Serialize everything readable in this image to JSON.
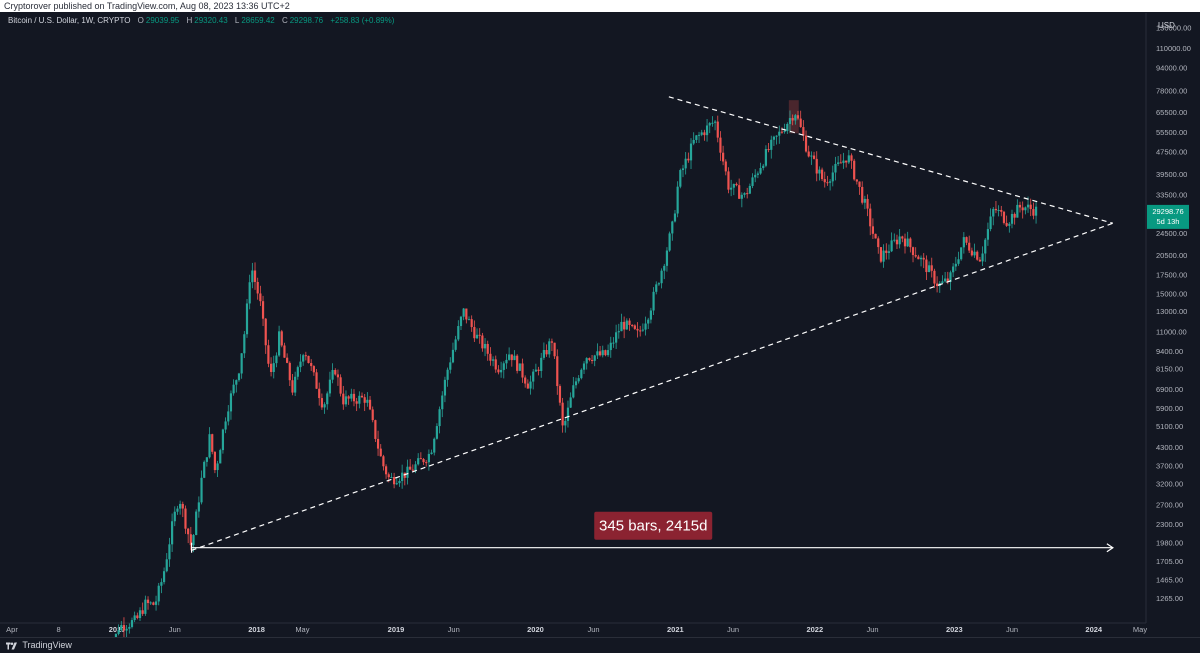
{
  "header": {
    "publisher": "Cryptorover published on TradingView.com, Aug 08, 2023 13:36 UTC+2"
  },
  "legend": {
    "symbol": "Bitcoin / U.S. Dollar, 1W, CRYPTO",
    "open_label": "O",
    "open": "29039.95",
    "high_label": "H",
    "high": "29320.43",
    "low_label": "L",
    "low": "28659.42",
    "close_label": "C",
    "close": "29298.76",
    "change": "+258.83 (+0.89%)"
  },
  "footer": {
    "brand": "TradingView"
  },
  "colors": {
    "background": "#131722",
    "up": "#26a69a",
    "down": "#ef5350",
    "price_badge": "#089981",
    "measure_label_bg": "#8b2331",
    "trendline": "#ffffff"
  },
  "chart_data": {
    "type": "candlestick",
    "title": "Bitcoin / U.S. Dollar, 1W, CRYPTO",
    "currency_label": "USD",
    "y_scale": "log",
    "ylim": [
      1100,
      145000
    ],
    "y_ticks": [
      "130000.00",
      "110000.00",
      "94000.00",
      "78000.00",
      "65500.00",
      "55500.00",
      "47500.00",
      "39500.00",
      "33500.00",
      "28500.00",
      "24500.00",
      "20500.00",
      "17500.00",
      "15000.00",
      "13000.00",
      "11000.00",
      "9400.00",
      "8150.00",
      "6900.00",
      "5900.00",
      "5100.00",
      "4300.00",
      "3700.00",
      "3200.00",
      "2700.00",
      "2300.00",
      "1980.00",
      "1705.00",
      "1465.00",
      "1265.00"
    ],
    "y_tick_values": [
      130000,
      110000,
      94000,
      78000,
      65500,
      55500,
      47500,
      39500,
      33500,
      28500,
      24500,
      20500,
      17500,
      15000,
      13000,
      11000,
      9400,
      8150,
      6900,
      5900,
      5100,
      4300,
      3700,
      3200,
      2700,
      2300,
      1980,
      1705,
      1465,
      1265
    ],
    "x_ticks": [
      {
        "label": "Apr",
        "date": "2016-04-01"
      },
      {
        "label": "8",
        "date": "2016-08-01"
      },
      {
        "label": "2017",
        "date": "2017-01-01"
      },
      {
        "label": "Jun",
        "date": "2017-06-01"
      },
      {
        "label": "2018",
        "date": "2018-01-01"
      },
      {
        "label": "May",
        "date": "2018-05-01"
      },
      {
        "label": "2019",
        "date": "2019-01-01"
      },
      {
        "label": "Jun",
        "date": "2019-06-01"
      },
      {
        "label": "2020",
        "date": "2020-01-01"
      },
      {
        "label": "Jun",
        "date": "2020-06-01"
      },
      {
        "label": "2021",
        "date": "2021-01-01"
      },
      {
        "label": "Jun",
        "date": "2021-06-01"
      },
      {
        "label": "2022",
        "date": "2022-01-01"
      },
      {
        "label": "Jun",
        "date": "2022-06-01"
      },
      {
        "label": "2023",
        "date": "2023-01-01"
      },
      {
        "label": "Jun",
        "date": "2023-06-01"
      },
      {
        "label": "2024",
        "date": "2024-01-01"
      },
      {
        "label": "May",
        "date": "2024-05-01"
      }
    ],
    "series": [
      {
        "name": "BTCUSD",
        "points": [
          {
            "date": "2016-12-15",
            "close": 800
          },
          {
            "date": "2017-01-05",
            "close": 1000
          },
          {
            "date": "2017-02-20",
            "close": 1050
          },
          {
            "date": "2017-03-15",
            "close": 1200
          },
          {
            "date": "2017-04-10",
            "close": 1200
          },
          {
            "date": "2017-05-01",
            "close": 1500
          },
          {
            "date": "2017-05-25",
            "close": 2250
          },
          {
            "date": "2017-06-12",
            "close": 2900
          },
          {
            "date": "2017-07-15",
            "close": 1900
          },
          {
            "date": "2017-08-10",
            "close": 3300
          },
          {
            "date": "2017-09-01",
            "close": 4700
          },
          {
            "date": "2017-09-15",
            "close": 3500
          },
          {
            "date": "2017-10-15",
            "close": 5800
          },
          {
            "date": "2017-11-15",
            "close": 8000
          },
          {
            "date": "2017-12-03",
            "close": 11500
          },
          {
            "date": "2017-12-17",
            "close": 19000
          },
          {
            "date": "2018-01-10",
            "close": 14000
          },
          {
            "date": "2018-02-06",
            "close": 7500
          },
          {
            "date": "2018-03-01",
            "close": 10500
          },
          {
            "date": "2018-04-06",
            "close": 6800
          },
          {
            "date": "2018-05-05",
            "close": 9700
          },
          {
            "date": "2018-06-25",
            "close": 6000
          },
          {
            "date": "2018-07-25",
            "close": 8200
          },
          {
            "date": "2018-08-15",
            "close": 6300
          },
          {
            "date": "2018-10-15",
            "close": 6400
          },
          {
            "date": "2018-11-25",
            "close": 3800
          },
          {
            "date": "2018-12-15",
            "close": 3300
          },
          {
            "date": "2019-02-01",
            "close": 3500
          },
          {
            "date": "2019-04-01",
            "close": 4100
          },
          {
            "date": "2019-05-15",
            "close": 8000
          },
          {
            "date": "2019-06-26",
            "close": 13000
          },
          {
            "date": "2019-08-01",
            "close": 10500
          },
          {
            "date": "2019-09-25",
            "close": 8200
          },
          {
            "date": "2019-10-26",
            "close": 9300
          },
          {
            "date": "2019-12-15",
            "close": 7100
          },
          {
            "date": "2020-02-13",
            "close": 10300
          },
          {
            "date": "2020-03-13",
            "close": 4900
          },
          {
            "date": "2020-04-10",
            "close": 7000
          },
          {
            "date": "2020-05-10",
            "close": 9000
          },
          {
            "date": "2020-07-05",
            "close": 9100
          },
          {
            "date": "2020-08-15",
            "close": 11800
          },
          {
            "date": "2020-09-25",
            "close": 10700
          },
          {
            "date": "2020-10-25",
            "close": 13000
          },
          {
            "date": "2020-11-30",
            "close": 19000
          },
          {
            "date": "2020-12-25",
            "close": 26000
          },
          {
            "date": "2021-01-10",
            "close": 38000
          },
          {
            "date": "2021-02-20",
            "close": 52000
          },
          {
            "date": "2021-04-14",
            "close": 61000
          },
          {
            "date": "2021-05-20",
            "close": 36000
          },
          {
            "date": "2021-07-01",
            "close": 33000
          },
          {
            "date": "2021-09-01",
            "close": 48000
          },
          {
            "date": "2021-11-10",
            "close": 66000
          },
          {
            "date": "2021-12-15",
            "close": 47000
          },
          {
            "date": "2022-01-25",
            "close": 37000
          },
          {
            "date": "2022-03-28",
            "close": 46000
          },
          {
            "date": "2022-05-15",
            "close": 30000
          },
          {
            "date": "2022-06-20",
            "close": 20000
          },
          {
            "date": "2022-08-15",
            "close": 24000
          },
          {
            "date": "2022-10-15",
            "close": 19000
          },
          {
            "date": "2022-11-21",
            "close": 16000
          },
          {
            "date": "2022-12-20",
            "close": 16800
          },
          {
            "date": "2023-01-25",
            "close": 23000
          },
          {
            "date": "2023-03-10",
            "close": 20000
          },
          {
            "date": "2023-04-15",
            "close": 30000
          },
          {
            "date": "2023-05-20",
            "close": 27000
          },
          {
            "date": "2023-06-25",
            "close": 30500
          },
          {
            "date": "2023-07-20",
            "close": 29800
          },
          {
            "date": "2023-08-08",
            "close": 29298.76
          }
        ]
      }
    ],
    "annotations": [
      {
        "type": "trendline",
        "style": "dashed",
        "from": {
          "date": "2017-07-15",
          "price": 1860
        },
        "to": {
          "date": "2024-02-20",
          "price": 26500
        }
      },
      {
        "type": "trendline",
        "style": "dashed",
        "from": {
          "date": "2020-12-15",
          "price": 74000
        },
        "to": {
          "date": "2024-02-20",
          "price": 26500
        }
      },
      {
        "type": "date_range",
        "label": "345 bars, 2415d",
        "from": "2017-07-15",
        "to": "2024-02-20",
        "price": 1900
      },
      {
        "type": "highlight",
        "date_from": "2021-10-25",
        "date_to": "2021-11-20",
        "price_low": 55000,
        "price_high": 72000
      }
    ],
    "last_price_label": "29298.76",
    "countdown_label": "5d 13h"
  }
}
